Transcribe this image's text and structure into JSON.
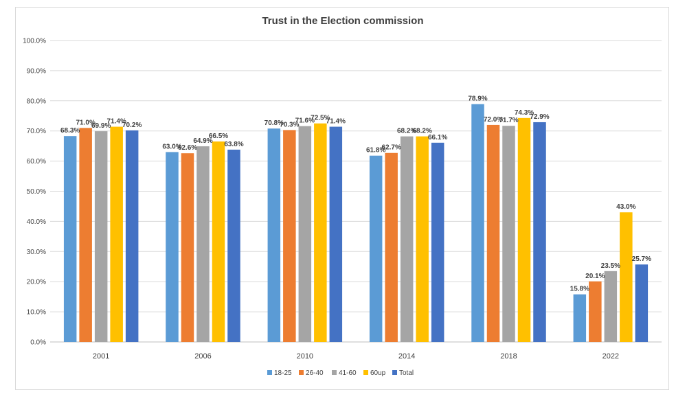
{
  "chart_data": {
    "type": "bar",
    "title": "Trust in the Election commission",
    "categories": [
      "2001",
      "2006",
      "2010",
      "2014",
      "2018",
      "2022"
    ],
    "series": [
      {
        "name": "18-25",
        "color": "#5b9bd5",
        "values": [
          68.3,
          63.0,
          70.8,
          61.8,
          78.9,
          15.8
        ]
      },
      {
        "name": "26-40",
        "color": "#ed7d31",
        "values": [
          71.0,
          62.6,
          70.3,
          62.7,
          72.0,
          20.1
        ]
      },
      {
        "name": "41-60",
        "color": "#a5a5a5",
        "values": [
          69.9,
          64.9,
          71.6,
          68.2,
          71.7,
          23.5
        ]
      },
      {
        "name": "60up",
        "color": "#ffc000",
        "values": [
          71.4,
          66.5,
          72.5,
          68.2,
          74.3,
          43.0
        ]
      },
      {
        "name": "Total",
        "color": "#4472c4",
        "values": [
          70.2,
          63.8,
          71.4,
          66.1,
          72.9,
          25.7
        ]
      }
    ],
    "y_ticks": [
      "0.0%",
      "10.0%",
      "20.0%",
      "30.0%",
      "40.0%",
      "50.0%",
      "60.0%",
      "70.0%",
      "80.0%",
      "90.0%",
      "100.0%"
    ],
    "ylim": [
      0,
      100
    ],
    "value_suffix": "%",
    "xlabel": "",
    "ylabel": "",
    "grid": true,
    "legend_position": "bottom"
  }
}
